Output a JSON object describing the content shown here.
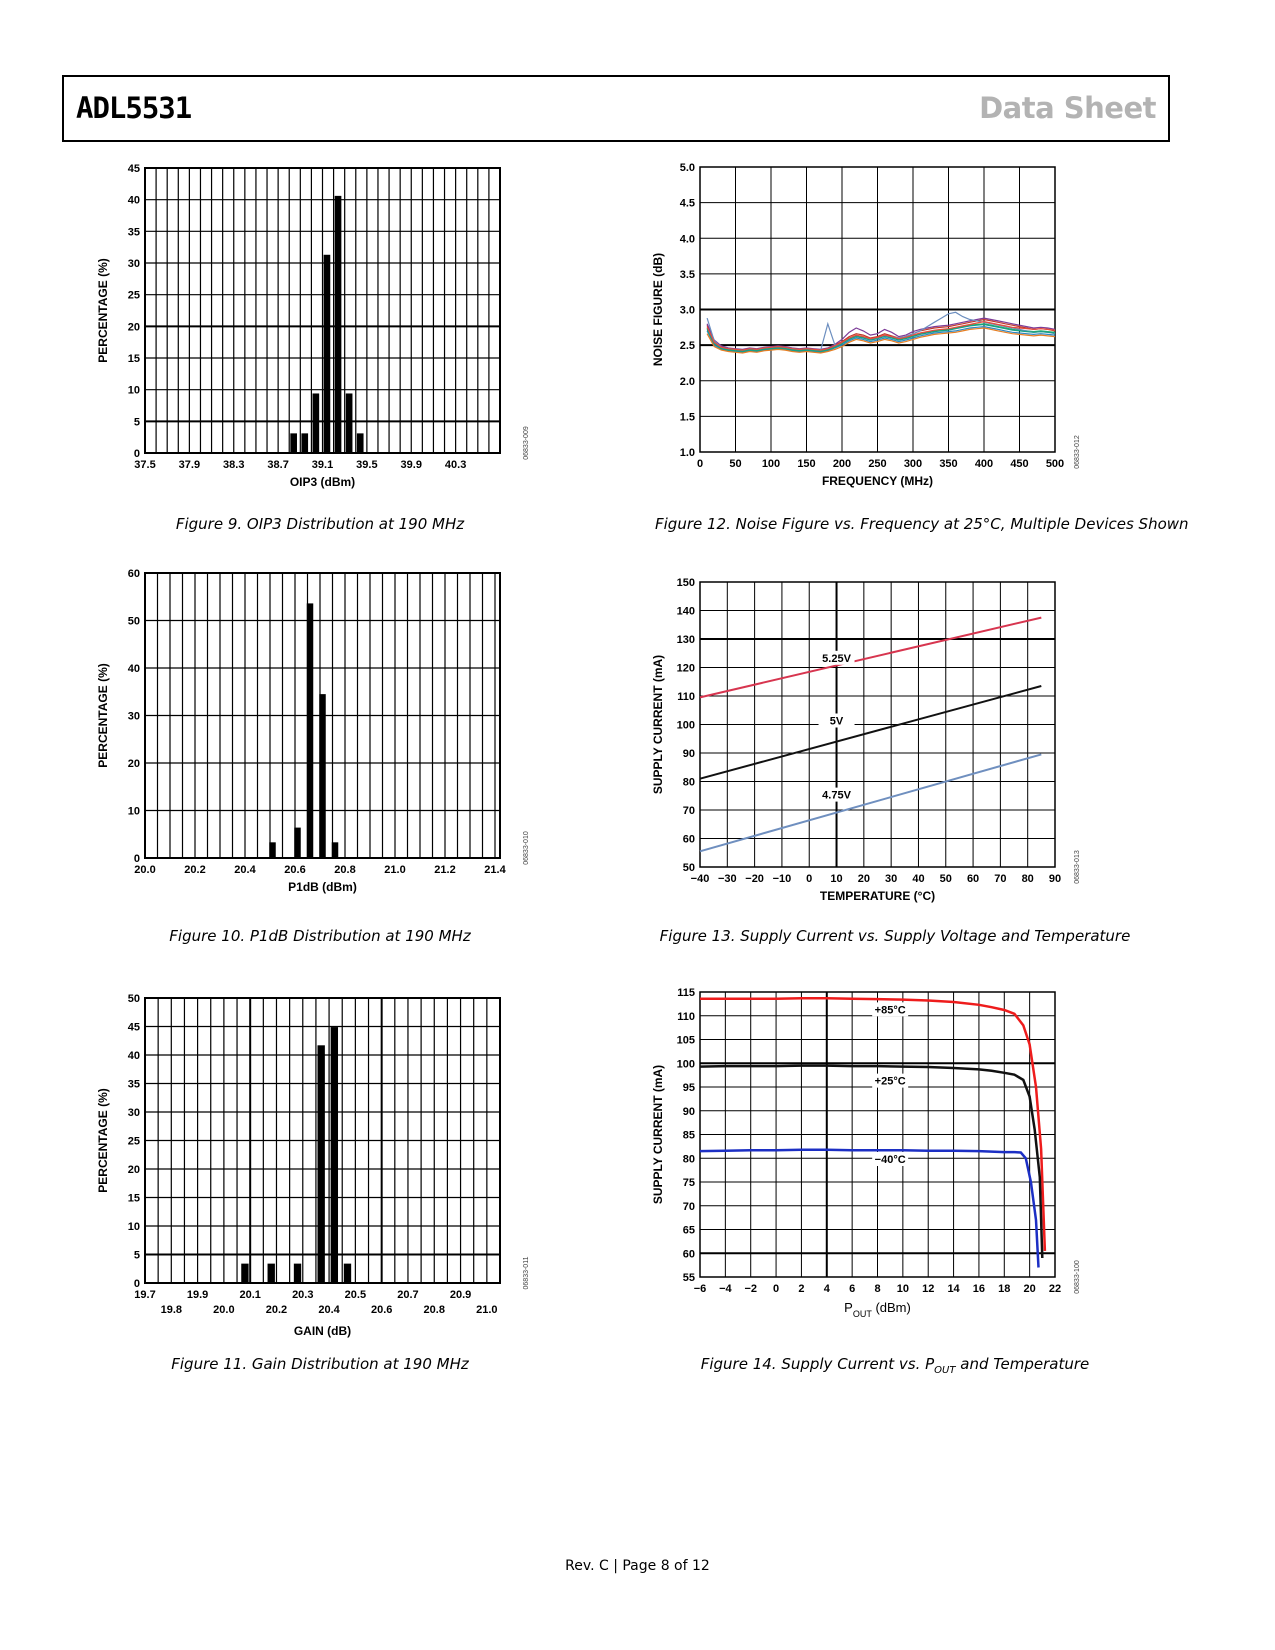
{
  "header": {
    "doc_name": "ADL5531",
    "doc_type": "Data Sheet"
  },
  "footer": "Rev. C | Page 8 of 12",
  "figures": {
    "fig9": {
      "caption": "Figure 9. OIP3 Distribution at 190 MHz",
      "code": "06833-009"
    },
    "fig10": {
      "caption": "Figure 10. P1dB Distribution at 190 MHz",
      "code": "06833-010"
    },
    "fig11": {
      "caption": "Figure 11. Gain Distribution at 190 MHz",
      "code": "06833-011"
    },
    "fig12": {
      "caption": "Figure 12. Noise Figure vs. Frequency at 25°C, Multiple Devices Shown",
      "code": "06833-012"
    },
    "fig13": {
      "caption": "Figure 13. Supply Current vs. Supply Voltage and Temperature",
      "code": "06833-013"
    },
    "fig14": {
      "caption_pre": "Figure 14. Supply Current vs. P",
      "caption_sub": "OUT",
      "caption_post": " and Temperature",
      "code": "06833-100"
    }
  },
  "chart_data": [
    {
      "id": "fig9",
      "type": "bar",
      "xlabel": "OIP3 (dBm)",
      "ylabel": "PERCENTAGE (%)",
      "xlim": [
        37.5,
        40.7
      ],
      "ylim": [
        0,
        45
      ],
      "x_ticks": [
        "37.5",
        "37.9",
        "38.3",
        "38.7",
        "39.1",
        "39.5",
        "39.9",
        "40.3"
      ],
      "x_tick_values": [
        37.5,
        37.9,
        38.3,
        38.7,
        39.1,
        39.5,
        39.9,
        40.3
      ],
      "y_ticks": [
        0,
        5,
        10,
        15,
        20,
        25,
        30,
        35,
        40,
        45
      ],
      "bars": [
        {
          "x": 38.84,
          "y": 3.1
        },
        {
          "x": 38.94,
          "y": 3.1
        },
        {
          "x": 39.04,
          "y": 9.4
        },
        {
          "x": 39.14,
          "y": 31.3
        },
        {
          "x": 39.24,
          "y": 40.6
        },
        {
          "x": 39.34,
          "y": 9.4
        },
        {
          "x": 39.44,
          "y": 3.1
        }
      ],
      "bar_width": 0.06
    },
    {
      "id": "fig10",
      "type": "bar",
      "xlabel": "P1dB (dBm)",
      "ylabel": "PERCENTAGE (%)",
      "xlim": [
        20.0,
        21.42
      ],
      "ylim": [
        0,
        60
      ],
      "x_ticks": [
        "20.0",
        "20.2",
        "20.4",
        "20.6",
        "20.8",
        "21.0",
        "21.2",
        "21.4"
      ],
      "x_tick_values": [
        20.0,
        20.2,
        20.4,
        20.6,
        20.8,
        21.0,
        21.2,
        21.4
      ],
      "y_ticks": [
        0,
        10,
        20,
        30,
        40,
        50,
        60
      ],
      "bars": [
        {
          "x": 20.51,
          "y": 3.3
        },
        {
          "x": 20.61,
          "y": 6.4
        },
        {
          "x": 20.66,
          "y": 53.6
        },
        {
          "x": 20.71,
          "y": 34.5
        },
        {
          "x": 20.76,
          "y": 3.3
        }
      ],
      "bar_width": 0.026
    },
    {
      "id": "fig11",
      "type": "bar",
      "xlabel": "GAIN (dB)",
      "ylabel": "PERCENTAGE (%)",
      "xlim": [
        19.7,
        21.05
      ],
      "ylim": [
        0,
        50
      ],
      "x_ticks_upper": [
        "19.7",
        "19.9",
        "20.1",
        "20.3",
        "20.5",
        "20.7",
        "20.9"
      ],
      "x_ticks_upper_values": [
        19.7,
        19.9,
        20.1,
        20.3,
        20.5,
        20.7,
        20.9
      ],
      "x_ticks_lower": [
        "19.8",
        "20.0",
        "20.2",
        "20.4",
        "20.6",
        "20.8",
        "21.0"
      ],
      "x_ticks_lower_values": [
        19.8,
        20.0,
        20.2,
        20.4,
        20.6,
        20.8,
        21.0
      ],
      "y_ticks": [
        0,
        5,
        10,
        15,
        20,
        25,
        30,
        35,
        40,
        45,
        50
      ],
      "bars": [
        {
          "x": 20.08,
          "y": 3.4
        },
        {
          "x": 20.18,
          "y": 3.4
        },
        {
          "x": 20.28,
          "y": 3.4
        },
        {
          "x": 20.37,
          "y": 41.7
        },
        {
          "x": 20.42,
          "y": 44.9
        },
        {
          "x": 20.47,
          "y": 3.4
        }
      ],
      "bar_width": 0.028
    },
    {
      "id": "fig12",
      "type": "line",
      "xlabel": "FREQUENCY (MHz)",
      "ylabel": "NOISE FIGURE (dB)",
      "xlim": [
        0,
        500
      ],
      "ylim": [
        1.0,
        5.0
      ],
      "x_ticks": [
        0,
        50,
        100,
        150,
        200,
        250,
        300,
        350,
        400,
        450,
        500
      ],
      "y_ticks": [
        "1.0",
        "1.5",
        "2.0",
        "2.5",
        "3.0",
        "3.5",
        "4.0",
        "4.5",
        "5.0"
      ],
      "y_tick_values": [
        1.0,
        1.5,
        2.0,
        2.5,
        3.0,
        3.5,
        4.0,
        4.5,
        5.0
      ],
      "x": [
        10,
        20,
        30,
        40,
        50,
        60,
        70,
        80,
        90,
        100,
        110,
        120,
        130,
        140,
        150,
        160,
        170,
        180,
        190,
        200,
        210,
        220,
        230,
        240,
        250,
        260,
        270,
        280,
        290,
        300,
        310,
        320,
        330,
        340,
        350,
        360,
        370,
        380,
        390,
        400,
        410,
        420,
        430,
        440,
        450,
        460,
        470,
        480,
        490,
        500
      ],
      "series": [
        {
          "color": "#c0392b",
          "values": [
            2.78,
            2.55,
            2.48,
            2.45,
            2.44,
            2.43,
            2.45,
            2.44,
            2.46,
            2.47,
            2.48,
            2.47,
            2.45,
            2.44,
            2.45,
            2.44,
            2.43,
            2.45,
            2.5,
            2.55,
            2.62,
            2.66,
            2.64,
            2.6,
            2.62,
            2.66,
            2.63,
            2.6,
            2.62,
            2.66,
            2.7,
            2.72,
            2.74,
            2.75,
            2.76,
            2.78,
            2.8,
            2.82,
            2.84,
            2.86,
            2.84,
            2.82,
            2.8,
            2.78,
            2.76,
            2.74,
            2.72,
            2.73,
            2.72,
            2.7
          ]
        },
        {
          "color": "#2e86c1",
          "values": [
            2.7,
            2.5,
            2.44,
            2.42,
            2.41,
            2.4,
            2.42,
            2.41,
            2.43,
            2.44,
            2.45,
            2.44,
            2.42,
            2.41,
            2.42,
            2.41,
            2.4,
            2.42,
            2.46,
            2.5,
            2.56,
            2.6,
            2.58,
            2.55,
            2.57,
            2.6,
            2.58,
            2.55,
            2.57,
            2.6,
            2.63,
            2.65,
            2.67,
            2.68,
            2.69,
            2.7,
            2.72,
            2.74,
            2.75,
            2.76,
            2.74,
            2.72,
            2.7,
            2.68,
            2.67,
            2.66,
            2.65,
            2.66,
            2.65,
            2.64
          ]
        },
        {
          "color": "#27ae60",
          "values": [
            2.74,
            2.53,
            2.46,
            2.44,
            2.43,
            2.42,
            2.44,
            2.43,
            2.45,
            2.46,
            2.47,
            2.46,
            2.44,
            2.43,
            2.44,
            2.43,
            2.42,
            2.44,
            2.48,
            2.53,
            2.59,
            2.63,
            2.61,
            2.58,
            2.6,
            2.63,
            2.61,
            2.58,
            2.6,
            2.63,
            2.66,
            2.68,
            2.7,
            2.71,
            2.72,
            2.74,
            2.76,
            2.78,
            2.79,
            2.8,
            2.78,
            2.76,
            2.74,
            2.72,
            2.71,
            2.7,
            2.69,
            2.7,
            2.69,
            2.68
          ]
        },
        {
          "color": "#7d3c98",
          "values": [
            2.8,
            2.57,
            2.49,
            2.46,
            2.45,
            2.44,
            2.46,
            2.45,
            2.47,
            2.48,
            2.49,
            2.48,
            2.46,
            2.45,
            2.46,
            2.45,
            2.44,
            2.46,
            2.51,
            2.58,
            2.68,
            2.74,
            2.7,
            2.64,
            2.66,
            2.72,
            2.68,
            2.62,
            2.64,
            2.69,
            2.72,
            2.74,
            2.76,
            2.77,
            2.78,
            2.8,
            2.82,
            2.84,
            2.86,
            2.88,
            2.86,
            2.84,
            2.82,
            2.8,
            2.78,
            2.76,
            2.74,
            2.75,
            2.74,
            2.72
          ]
        },
        {
          "color": "#e67e22",
          "values": [
            2.66,
            2.48,
            2.43,
            2.41,
            2.4,
            2.39,
            2.41,
            2.4,
            2.42,
            2.43,
            2.44,
            2.43,
            2.41,
            2.4,
            2.41,
            2.4,
            2.39,
            2.41,
            2.44,
            2.48,
            2.54,
            2.58,
            2.56,
            2.53,
            2.55,
            2.58,
            2.56,
            2.53,
            2.55,
            2.58,
            2.61,
            2.63,
            2.65,
            2.66,
            2.67,
            2.68,
            2.7,
            2.72,
            2.73,
            2.74,
            2.72,
            2.7,
            2.68,
            2.66,
            2.65,
            2.64,
            2.63,
            2.64,
            2.63,
            2.62
          ]
        },
        {
          "color": "#6c8ebf",
          "values": [
            2.88,
            2.56,
            2.47,
            2.45,
            2.44,
            2.43,
            2.45,
            2.44,
            2.46,
            2.47,
            2.48,
            2.47,
            2.45,
            2.44,
            2.45,
            2.44,
            2.43,
            2.8,
            2.5,
            2.52,
            2.58,
            2.62,
            2.6,
            2.58,
            2.6,
            2.63,
            2.62,
            2.6,
            2.62,
            2.66,
            2.7,
            2.76,
            2.82,
            2.88,
            2.94,
            2.96,
            2.9,
            2.86,
            2.84,
            2.82,
            2.8,
            2.78,
            2.76,
            2.74,
            2.72,
            2.7,
            2.68,
            2.69,
            2.68,
            2.66
          ]
        },
        {
          "color": "#16a085",
          "values": [
            2.72,
            2.52,
            2.45,
            2.43,
            2.42,
            2.41,
            2.43,
            2.42,
            2.44,
            2.45,
            2.46,
            2.45,
            2.43,
            2.42,
            2.43,
            2.42,
            2.41,
            2.43,
            2.47,
            2.52,
            2.58,
            2.62,
            2.6,
            2.57,
            2.59,
            2.62,
            2.6,
            2.57,
            2.59,
            2.62,
            2.65,
            2.67,
            2.69,
            2.7,
            2.71,
            2.73,
            2.75,
            2.77,
            2.78,
            2.79,
            2.77,
            2.75,
            2.73,
            2.71,
            2.7,
            2.69,
            2.68,
            2.69,
            2.68,
            2.67
          ]
        },
        {
          "color": "#e74c3c",
          "values": [
            2.76,
            2.54,
            2.47,
            2.45,
            2.44,
            2.43,
            2.45,
            2.44,
            2.46,
            2.47,
            2.48,
            2.47,
            2.45,
            2.44,
            2.45,
            2.44,
            2.43,
            2.45,
            2.49,
            2.54,
            2.6,
            2.64,
            2.62,
            2.59,
            2.61,
            2.64,
            2.62,
            2.59,
            2.61,
            2.64,
            2.67,
            2.69,
            2.71,
            2.72,
            2.73,
            2.75,
            2.77,
            2.79,
            2.81,
            2.83,
            2.81,
            2.79,
            2.77,
            2.75,
            2.74,
            2.73,
            2.72,
            2.73,
            2.72,
            2.71
          ]
        }
      ]
    },
    {
      "id": "fig13",
      "type": "line",
      "xlabel": "TEMPERATURE (°C)",
      "ylabel": "SUPPLY CURRENT (mA)",
      "xlim": [
        -40,
        90
      ],
      "ylim": [
        50,
        150
      ],
      "x_ticks": [
        "−40",
        "−30",
        "−20",
        "−10",
        "0",
        "10",
        "20",
        "30",
        "40",
        "50",
        "60",
        "70",
        "80",
        "90"
      ],
      "x_tick_values": [
        -40,
        -30,
        -20,
        -10,
        0,
        10,
        20,
        30,
        40,
        50,
        60,
        70,
        80,
        90
      ],
      "y_ticks": [
        50,
        60,
        70,
        80,
        90,
        100,
        110,
        120,
        130,
        140,
        150
      ],
      "series": [
        {
          "name": "5.25V",
          "color": "#d7354f",
          "x": [
            -40,
            85
          ],
          "values": [
            109.5,
            137.5
          ],
          "label_at": [
            10,
            122
          ]
        },
        {
          "name": "5V",
          "color": "#111111",
          "x": [
            -40,
            85
          ],
          "values": [
            81,
            113.5
          ],
          "label_at": [
            10,
            100
          ]
        },
        {
          "name": "4.75V",
          "color": "#6f8fbf",
          "x": [
            -40,
            85
          ],
          "values": [
            55.5,
            89.5
          ],
          "label_at": [
            10,
            74
          ]
        }
      ]
    },
    {
      "id": "fig14",
      "type": "line",
      "xlabel_pre": "P",
      "xlabel_sub": "OUT",
      "xlabel_post": " (dBm)",
      "ylabel": "SUPPLY CURRENT (mA)",
      "xlim": [
        -6,
        22
      ],
      "ylim": [
        55,
        115
      ],
      "x_ticks": [
        "−6",
        "−4",
        "−2",
        "0",
        "2",
        "4",
        "6",
        "8",
        "10",
        "12",
        "14",
        "16",
        "18",
        "20",
        "22"
      ],
      "x_tick_values": [
        -6,
        -4,
        -2,
        0,
        2,
        4,
        6,
        8,
        10,
        12,
        14,
        16,
        18,
        20,
        22
      ],
      "y_ticks": [
        55,
        60,
        65,
        70,
        75,
        80,
        85,
        90,
        95,
        100,
        105,
        110,
        115
      ],
      "series": [
        {
          "name": "+85°C",
          "color": "#ee1c1c",
          "x": [
            -6,
            -4,
            -2,
            0,
            2,
            4,
            6,
            8,
            10,
            12,
            14,
            16,
            17,
            18,
            18.8,
            19.5,
            20,
            20.5,
            20.9,
            21.2
          ],
          "values": [
            113.6,
            113.6,
            113.6,
            113.6,
            113.7,
            113.7,
            113.6,
            113.5,
            113.4,
            113.2,
            112.9,
            112.3,
            111.8,
            111.2,
            110.4,
            108.0,
            104.0,
            95.0,
            82.0,
            60.5
          ],
          "label_at": [
            9,
            110.5
          ]
        },
        {
          "name": "+25°C",
          "color": "#111111",
          "x": [
            -6,
            -4,
            -2,
            0,
            2,
            4,
            6,
            8,
            10,
            12,
            14,
            16,
            17,
            18,
            18.8,
            19.5,
            20,
            20.4,
            20.8,
            21.0
          ],
          "values": [
            99.3,
            99.4,
            99.4,
            99.4,
            99.5,
            99.5,
            99.4,
            99.4,
            99.3,
            99.2,
            99.0,
            98.7,
            98.4,
            98.0,
            97.6,
            96.5,
            93.0,
            86.0,
            76.0,
            59.0
          ],
          "label_at": [
            9,
            95.5
          ]
        },
        {
          "name": "−40°C",
          "color": "#1c2fc4",
          "x": [
            -6,
            -4,
            -2,
            0,
            2,
            4,
            6,
            8,
            10,
            12,
            14,
            16,
            17,
            18,
            18.8,
            19.3,
            19.7,
            20.1,
            20.5,
            20.7
          ],
          "values": [
            81.5,
            81.6,
            81.7,
            81.7,
            81.8,
            81.8,
            81.7,
            81.7,
            81.7,
            81.6,
            81.6,
            81.5,
            81.4,
            81.3,
            81.3,
            81.2,
            80.0,
            75.0,
            67.0,
            57.0
          ],
          "label_at": [
            9,
            79
          ]
        }
      ]
    }
  ]
}
